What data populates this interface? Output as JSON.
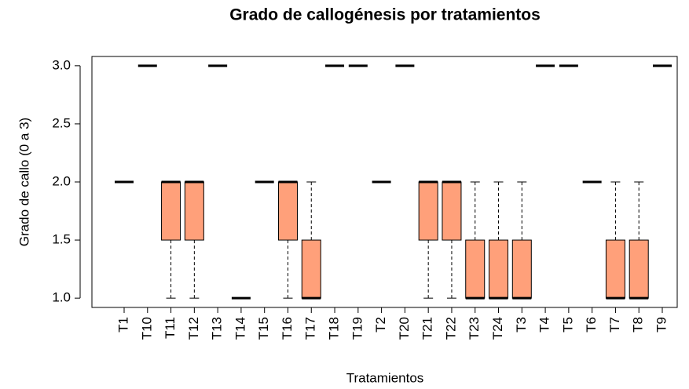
{
  "chart_data": {
    "type": "boxplot",
    "title": "Grado de callogénesis por tratamientos",
    "x_label": "Tratamientos",
    "y_label": "Grado de callo (0 a 3)",
    "color": "#ffa07a",
    "categories": [
      "T1",
      "T10",
      "T11",
      "T12",
      "T13",
      "T14",
      "T15",
      "T16",
      "T17",
      "T18",
      "T19",
      "T2",
      "T20",
      "T21",
      "T22",
      "T23",
      "T24",
      "T3",
      "T4",
      "T5",
      "T6",
      "T7",
      "T8",
      "T9"
    ],
    "boxes": [
      {
        "min": 2,
        "q1": 2,
        "median": 2,
        "q3": 2,
        "max": 2
      },
      {
        "min": 3,
        "q1": 3,
        "median": 3,
        "q3": 3,
        "max": 3
      },
      {
        "min": 1,
        "q1": 1.5,
        "median": 2,
        "q3": 2,
        "max": 2
      },
      {
        "min": 1,
        "q1": 1.5,
        "median": 2,
        "q3": 2,
        "max": 2
      },
      {
        "min": 3,
        "q1": 3,
        "median": 3,
        "q3": 3,
        "max": 3
      },
      {
        "min": 1,
        "q1": 1,
        "median": 1,
        "q3": 1,
        "max": 1
      },
      {
        "min": 2,
        "q1": 2,
        "median": 2,
        "q3": 2,
        "max": 2
      },
      {
        "min": 1,
        "q1": 1.5,
        "median": 2,
        "q3": 2,
        "max": 2
      },
      {
        "min": 1,
        "q1": 1,
        "median": 1,
        "q3": 1.5,
        "max": 2
      },
      {
        "min": 3,
        "q1": 3,
        "median": 3,
        "q3": 3,
        "max": 3
      },
      {
        "min": 3,
        "q1": 3,
        "median": 3,
        "q3": 3,
        "max": 3
      },
      {
        "min": 2,
        "q1": 2,
        "median": 2,
        "q3": 2,
        "max": 2
      },
      {
        "min": 3,
        "q1": 3,
        "median": 3,
        "q3": 3,
        "max": 3
      },
      {
        "min": 1,
        "q1": 1.5,
        "median": 2,
        "q3": 2,
        "max": 2
      },
      {
        "min": 1,
        "q1": 1.5,
        "median": 2,
        "q3": 2,
        "max": 2
      },
      {
        "min": 1,
        "q1": 1,
        "median": 1,
        "q3": 1.5,
        "max": 2
      },
      {
        "min": 1,
        "q1": 1,
        "median": 1,
        "q3": 1.5,
        "max": 2
      },
      {
        "min": 1,
        "q1": 1,
        "median": 1,
        "q3": 1.5,
        "max": 2
      },
      {
        "min": 3,
        "q1": 3,
        "median": 3,
        "q3": 3,
        "max": 3
      },
      {
        "min": 3,
        "q1": 3,
        "median": 3,
        "q3": 3,
        "max": 3
      },
      {
        "min": 2,
        "q1": 2,
        "median": 2,
        "q3": 2,
        "max": 2
      },
      {
        "min": 1,
        "q1": 1,
        "median": 1,
        "q3": 1.5,
        "max": 2
      },
      {
        "min": 1,
        "q1": 1,
        "median": 1,
        "q3": 1.5,
        "max": 2
      },
      {
        "min": 3,
        "q1": 3,
        "median": 3,
        "q3": 3,
        "max": 3
      }
    ],
    "ylim": [
      0.92,
      3.08
    ],
    "yticks": [
      {
        "value": 1,
        "label": "1.0"
      },
      1.5,
      {
        "value": 2,
        "label": "2.0"
      },
      2.5,
      {
        "value": 3,
        "label": "3.0"
      }
    ]
  }
}
